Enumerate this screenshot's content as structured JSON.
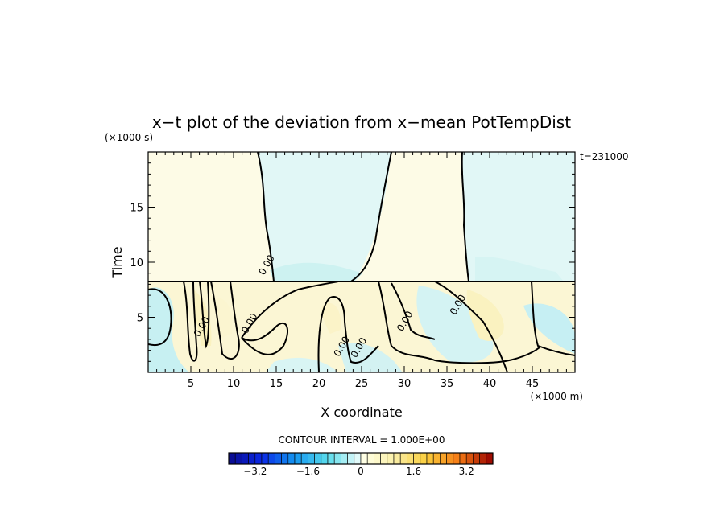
{
  "chart_data": {
    "type": "heatmap",
    "title": "x−t plot of the deviation from x−mean PotTempDist",
    "xlabel": "X coordinate",
    "ylabel": "Time",
    "x_unit": "(×1000 m)",
    "y_unit": "(×1000 s)",
    "annotation": "t=231000",
    "contour_interval": "CONTOUR INTERVAL = 1.000E+00",
    "xlim": [
      0,
      50
    ],
    "ylim": [
      0,
      20
    ],
    "x_ticks": [
      5,
      10,
      15,
      20,
      25,
      30,
      35,
      40,
      45
    ],
    "y_ticks": [
      5,
      10,
      15
    ],
    "x_tick_labels": [
      "5",
      "10",
      "15",
      "20",
      "25",
      "30",
      "35",
      "40",
      "45"
    ],
    "y_tick_labels": [
      "5",
      "10",
      "15"
    ],
    "contour_labels": [
      {
        "text": "0.00",
        "x": 14.2,
        "y": 9.6
      },
      {
        "text": "0.00",
        "x": 6.6,
        "y": 4.0
      },
      {
        "text": "0.00",
        "x": 12.2,
        "y": 4.3
      },
      {
        "text": "0.00",
        "x": 23.0,
        "y": 2.2
      },
      {
        "text": "0.00",
        "x": 25.0,
        "y": 2.1
      },
      {
        "text": "0.00",
        "x": 30.4,
        "y": 4.5
      },
      {
        "text": "0.00",
        "x": 36.6,
        "y": 6.0
      }
    ],
    "colorbar": {
      "min": -4.0,
      "max": 4.0,
      "step": 0.2,
      "tick_values": [
        -3.2,
        -1.6,
        0,
        1.6,
        3.2
      ],
      "tick_labels": [
        "−3.2",
        "−1.6",
        "0",
        "1.6",
        "3.2"
      ]
    },
    "field_colors": {
      "positive": "#fdfbe6",
      "negative": "#e1f7f6",
      "warm": "#faf2c0",
      "cool": "#c7f0f2"
    }
  }
}
